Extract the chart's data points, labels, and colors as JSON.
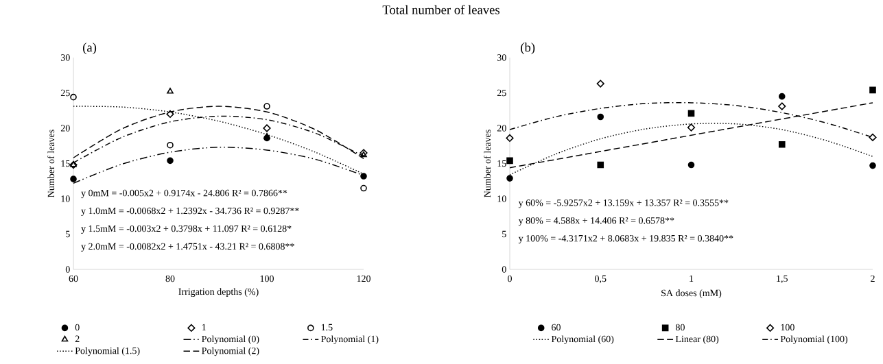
{
  "chart_data": [
    {
      "type": "scatter",
      "xlabel": "Irrigation depths (%)",
      "ylabel": "Number of leaves",
      "x": [
        60,
        80,
        100,
        120
      ],
      "xlim": [
        60,
        120
      ],
      "ylim": [
        0,
        30
      ],
      "xticks": [
        60,
        80,
        100,
        120
      ],
      "yticks": [
        0,
        5,
        10,
        15,
        20,
        25,
        30
      ],
      "legend": "bottom",
      "annotations": [
        "(a)",
        "y 0mM = -0.005x2 + 0.9174x - 24.806 R² = 0.7866**",
        "y 1.0mM = -0.0068x2 + 1.2392x - 34.736 R² = 0.9287**",
        "y 1.5mM = -0.003x2 + 0.3798x + 11.097 R² = 0.6128*",
        "y 2.0mM = -0.0082x2 + 1.4751x - 43.21 R² = 0.6808**"
      ],
      "series": [
        {
          "name": "0",
          "type": "scatter",
          "marker": "circle",
          "color": "#000000",
          "values": [
            12.8,
            15.4,
            18.6,
            13.2
          ]
        },
        {
          "name": "1",
          "type": "scatter",
          "marker": "diamond",
          "color": "#000000",
          "values": [
            14.8,
            22.0,
            20.0,
            16.5
          ]
        },
        {
          "name": "1.5",
          "type": "scatter",
          "marker": "open circle",
          "color": "#000000",
          "values": [
            24.4,
            17.6,
            23.1,
            11.5
          ]
        },
        {
          "name": "2",
          "type": "scatter",
          "marker": "triangle",
          "color": "#000000",
          "values": [
            14.8,
            25.2,
            18.8,
            16.2
          ]
        },
        {
          "name": "Polynomial (0)",
          "type": "line",
          "line_style": "dashdotdot",
          "color": "#000000",
          "x": [
            60,
            70,
            80,
            90,
            100,
            110,
            120
          ],
          "values": [
            12.2,
            14.9,
            16.6,
            17.3,
            16.9,
            15.6,
            13.3
          ]
        },
        {
          "name": "Polynomial (1)",
          "type": "line",
          "line_style": "dashdot",
          "color": "#000000",
          "x": [
            60,
            70,
            80,
            90,
            100,
            110,
            120
          ],
          "values": [
            15.1,
            18.7,
            20.9,
            21.7,
            21.2,
            19.3,
            16.0
          ]
        },
        {
          "name": "Polynomial (1.5)",
          "type": "line",
          "line_style": "dotted",
          "color": "#000000",
          "x": [
            60,
            70,
            80,
            90,
            100,
            110,
            120
          ],
          "values": [
            23.1,
            23.0,
            22.3,
            21.0,
            19.1,
            16.6,
            13.5
          ]
        },
        {
          "name": "Polynomial (2)",
          "type": "line",
          "line_style": "dashed",
          "color": "#000000",
          "x": [
            60,
            70,
            80,
            90,
            100,
            110,
            120
          ],
          "values": [
            15.8,
            19.9,
            22.3,
            23.1,
            22.3,
            19.8,
            15.7
          ]
        }
      ]
    },
    {
      "type": "scatter",
      "xlabel": "SA doses (mM)",
      "ylabel": "Number of leaves",
      "x": [
        0,
        0.5,
        1,
        1.5,
        2
      ],
      "xlim": [
        0,
        2
      ],
      "ylim": [
        0,
        30
      ],
      "xticks": [
        0,
        {
          "value": 0.5,
          "label": "0,5"
        },
        1,
        {
          "value": 1.5,
          "label": "1,5"
        },
        2
      ],
      "yticks": [
        0,
        5,
        10,
        15,
        20,
        25,
        30
      ],
      "legend": "bottom",
      "annotations": [
        "(b)",
        "y 60% = -5.9257x2 + 13.159x + 13.357 R² = 0.3555**",
        "y 80% = 4.588x + 14.406 R² = 0.6578**",
        "y 100% = -4.3171x2 + 8.0683x + 19.835 R² = 0.3840**"
      ],
      "series": [
        {
          "name": "60",
          "type": "scatter",
          "marker": "circle",
          "color": "#000000",
          "values": [
            12.9,
            21.6,
            14.8,
            24.5,
            14.7
          ]
        },
        {
          "name": "80",
          "type": "scatter",
          "marker": "square",
          "color": "#000000",
          "values": [
            15.4,
            14.8,
            22.1,
            17.7,
            25.4
          ]
        },
        {
          "name": "100",
          "type": "scatter",
          "marker": "diamond",
          "color": "#000000",
          "values": [
            18.6,
            26.3,
            20.1,
            23.1,
            18.7
          ]
        },
        {
          "name": "Polynomial (60)",
          "type": "line",
          "line_style": "dotted",
          "color": "#000000",
          "x": [
            0,
            0.25,
            0.5,
            0.75,
            1,
            1.25,
            1.5,
            1.75,
            2
          ],
          "values": [
            13.4,
            16.3,
            18.5,
            19.9,
            20.6,
            20.6,
            19.8,
            18.2,
            16.0
          ]
        },
        {
          "name": "Linear (80)",
          "type": "line",
          "line_style": "dashed",
          "color": "#000000",
          "x": [
            0,
            2
          ],
          "values": [
            14.4,
            23.6
          ]
        },
        {
          "name": "Polynomial (100)",
          "type": "line",
          "line_style": "dashdot",
          "color": "#000000",
          "x": [
            0,
            0.25,
            0.5,
            0.75,
            1,
            1.25,
            1.5,
            1.75,
            2
          ],
          "values": [
            19.8,
            21.6,
            22.8,
            23.5,
            23.6,
            23.2,
            22.2,
            20.7,
            18.7
          ]
        }
      ]
    },
    {
      "type": "other",
      "title": "Total number of leaves"
    }
  ]
}
